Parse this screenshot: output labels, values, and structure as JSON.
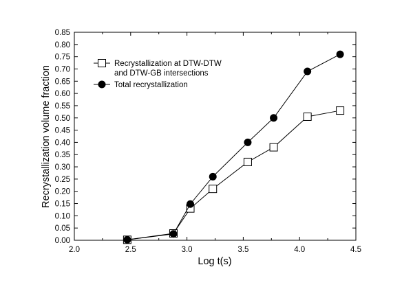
{
  "chart_data": {
    "type": "line",
    "title": "",
    "xlabel": "Log t(s)",
    "ylabel": "Recrystallization volume fraction",
    "xlim": [
      2.0,
      4.5
    ],
    "ylim": [
      0.0,
      0.85
    ],
    "x_ticks": [
      2.0,
      2.5,
      3.0,
      3.5,
      4.0,
      4.5
    ],
    "x_tick_labels": [
      "2.0",
      "2.5",
      "3.0",
      "3.5",
      "4.0",
      "4.5"
    ],
    "y_ticks": [
      0.0,
      0.05,
      0.1,
      0.15,
      0.2,
      0.25,
      0.3,
      0.35,
      0.4,
      0.45,
      0.5,
      0.55,
      0.6,
      0.65,
      0.7,
      0.75,
      0.8,
      0.85
    ],
    "y_tick_labels": [
      "0.00",
      "0.05",
      "0.10",
      "0.15",
      "0.20",
      "0.25",
      "0.30",
      "0.35",
      "0.40",
      "0.45",
      "0.50",
      "0.55",
      "0.60",
      "0.65",
      "0.70",
      "0.75",
      "0.80",
      "0.85"
    ],
    "grid": false,
    "legend_position": "top-left",
    "series": [
      {
        "name_lines": [
          "Recrystallization at DTW-DTW",
          "and DTW-GB intersections"
        ],
        "marker": "open-square",
        "color": "#000000",
        "x": [
          2.47,
          2.88,
          3.03,
          3.23,
          3.54,
          3.77,
          4.07,
          4.36
        ],
        "y": [
          0.002,
          0.028,
          0.13,
          0.21,
          0.32,
          0.38,
          0.505,
          0.53
        ]
      },
      {
        "name_lines": [
          "Total recrystallization"
        ],
        "marker": "filled-circle",
        "color": "#000000",
        "x": [
          2.47,
          2.88,
          3.03,
          3.23,
          3.54,
          3.77,
          4.07,
          4.36
        ],
        "y": [
          0.002,
          0.026,
          0.148,
          0.26,
          0.4,
          0.5,
          0.69,
          0.76
        ]
      }
    ]
  }
}
